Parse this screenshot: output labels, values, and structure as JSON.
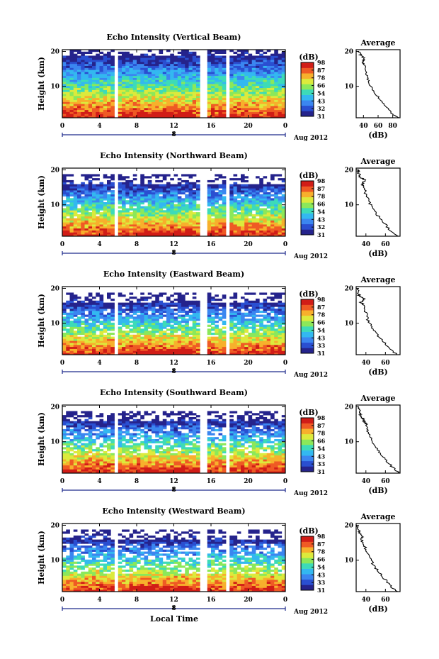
{
  "figure": {
    "xlabel": "Local Time",
    "date_label": "Aug 2012"
  },
  "chart_data": [
    {
      "type": "heatmap",
      "title": "Echo Intensity (Vertical Beam)",
      "ylabel": "Height (km)",
      "xlabel": "Local Time",
      "x_ticks": [
        "0",
        "4",
        "8",
        "12",
        "16",
        "20",
        "0"
      ],
      "x_range": [
        0,
        24
      ],
      "day_tick": "8",
      "y_ticks": [
        "10",
        "20"
      ],
      "y_range": [
        1,
        20.5
      ],
      "colorbar": {
        "title": "(dB)",
        "ticks": [
          "31",
          "32",
          "43",
          "54",
          "66",
          "78",
          "87",
          "98"
        ]
      },
      "data_gaps_hours": [
        [
          5.6,
          5.9
        ],
        [
          15.0,
          15.5
        ],
        [
          17.7,
          18.0
        ]
      ],
      "avg_profile": {
        "title": "Average",
        "xlabel": "(dB)",
        "x_ticks": [
          "40",
          "60",
          "80"
        ],
        "x_range": [
          30,
          90
        ],
        "y_ticks": [
          "10",
          "20"
        ],
        "values": [
          {
            "h": 1,
            "db": 88
          },
          {
            "h": 2,
            "db": 80
          },
          {
            "h": 4,
            "db": 72
          },
          {
            "h": 6,
            "db": 64
          },
          {
            "h": 8,
            "db": 56
          },
          {
            "h": 10,
            "db": 50
          },
          {
            "h": 12,
            "db": 46
          },
          {
            "h": 14,
            "db": 44
          },
          {
            "h": 16,
            "db": 41
          },
          {
            "h": 17,
            "db": 39
          },
          {
            "h": 18,
            "db": 41
          },
          {
            "h": 19,
            "db": 36
          },
          {
            "h": 20,
            "db": 34
          }
        ]
      }
    },
    {
      "type": "heatmap",
      "title": "Echo Intensity (Northward Beam)",
      "ylabel": "Height (km)",
      "xlabel": "Local Time",
      "x_ticks": [
        "0",
        "4",
        "8",
        "12",
        "16",
        "20",
        "0"
      ],
      "x_range": [
        0,
        24
      ],
      "day_tick": "8",
      "y_ticks": [
        "10",
        "20"
      ],
      "y_range": [
        1,
        20.5
      ],
      "colorbar": {
        "title": "(dB)",
        "ticks": [
          "31",
          "32",
          "43",
          "54",
          "66",
          "78",
          "87",
          "98"
        ]
      },
      "data_gaps_hours": [
        [
          5.6,
          5.9
        ],
        [
          15.0,
          15.5
        ],
        [
          17.7,
          18.0
        ]
      ],
      "avg_profile": {
        "title": "Average",
        "xlabel": "(dB)",
        "x_ticks": [
          "40",
          "60"
        ],
        "x_range": [
          30,
          75
        ],
        "y_ticks": [
          "10",
          "20"
        ],
        "values": [
          {
            "h": 1,
            "db": 73
          },
          {
            "h": 3,
            "db": 64
          },
          {
            "h": 5,
            "db": 58
          },
          {
            "h": 7,
            "db": 52
          },
          {
            "h": 9,
            "db": 47
          },
          {
            "h": 11,
            "db": 43
          },
          {
            "h": 13,
            "db": 40
          },
          {
            "h": 15,
            "db": 38
          },
          {
            "h": 16,
            "db": 36
          },
          {
            "h": 17,
            "db": 39
          },
          {
            "h": 18,
            "db": 34
          },
          {
            "h": 19,
            "db": 33
          },
          {
            "h": 20,
            "db": 32
          }
        ]
      }
    },
    {
      "type": "heatmap",
      "title": "Echo Intensity (Eastward Beam)",
      "ylabel": "Height (km)",
      "xlabel": "Local Time",
      "x_ticks": [
        "0",
        "4",
        "8",
        "12",
        "16",
        "20",
        "0"
      ],
      "x_range": [
        0,
        24
      ],
      "day_tick": "8",
      "y_ticks": [
        "10",
        "20"
      ],
      "y_range": [
        1,
        20.5
      ],
      "colorbar": {
        "title": "(dB)",
        "ticks": [
          "31",
          "33",
          "43",
          "54",
          "66",
          "78",
          "87",
          "98"
        ]
      },
      "data_gaps_hours": [
        [
          5.6,
          5.9
        ],
        [
          15.0,
          15.5
        ],
        [
          17.7,
          18.0
        ]
      ],
      "avg_profile": {
        "title": "Average",
        "xlabel": "(dB)",
        "x_ticks": [
          "40",
          "60"
        ],
        "x_range": [
          30,
          75
        ],
        "y_ticks": [
          "10",
          "20"
        ],
        "values": [
          {
            "h": 1,
            "db": 72
          },
          {
            "h": 3,
            "db": 63
          },
          {
            "h": 5,
            "db": 57
          },
          {
            "h": 7,
            "db": 51
          },
          {
            "h": 9,
            "db": 46
          },
          {
            "h": 11,
            "db": 42
          },
          {
            "h": 13,
            "db": 40
          },
          {
            "h": 15,
            "db": 38
          },
          {
            "h": 16,
            "db": 35
          },
          {
            "h": 17,
            "db": 38
          },
          {
            "h": 18,
            "db": 33
          },
          {
            "h": 19,
            "db": 32
          },
          {
            "h": 20,
            "db": 31
          }
        ]
      }
    },
    {
      "type": "heatmap",
      "title": "Echo Intensity (Southward Beam)",
      "ylabel": "Height (km)",
      "xlabel": "Local Time",
      "x_ticks": [
        "0",
        "4",
        "8",
        "12",
        "16",
        "20",
        "0"
      ],
      "x_range": [
        0,
        24
      ],
      "day_tick": "8",
      "y_ticks": [
        "10",
        "20"
      ],
      "y_range": [
        1,
        20.5
      ],
      "colorbar": {
        "title": "(dB)",
        "ticks": [
          "31",
          "33",
          "43",
          "54",
          "66",
          "78",
          "87",
          "98"
        ]
      },
      "data_gaps_hours": [
        [
          5.6,
          5.9
        ],
        [
          15.0,
          15.5
        ],
        [
          17.7,
          18.0
        ]
      ],
      "avg_profile": {
        "title": "Average",
        "xlabel": "(dB)",
        "x_ticks": [
          "40",
          "60"
        ],
        "x_range": [
          30,
          75
        ],
        "y_ticks": [
          "10",
          "20"
        ],
        "values": [
          {
            "h": 1,
            "db": 74
          },
          {
            "h": 3,
            "db": 66
          },
          {
            "h": 5,
            "db": 60
          },
          {
            "h": 7,
            "db": 54
          },
          {
            "h": 9,
            "db": 49
          },
          {
            "h": 11,
            "db": 45
          },
          {
            "h": 13,
            "db": 42
          },
          {
            "h": 15,
            "db": 40
          },
          {
            "h": 16,
            "db": 38
          },
          {
            "h": 17,
            "db": 36
          },
          {
            "h": 18,
            "db": 34
          },
          {
            "h": 19,
            "db": 33
          },
          {
            "h": 20,
            "db": 32
          }
        ]
      }
    },
    {
      "type": "heatmap",
      "title": "Echo Intensity (Westward Beam)",
      "ylabel": "Height (km)",
      "xlabel": "Local Time",
      "x_ticks": [
        "0",
        "4",
        "8",
        "12",
        "16",
        "20",
        "0"
      ],
      "x_range": [
        0,
        24
      ],
      "day_tick": "8",
      "y_ticks": [
        "10",
        "20"
      ],
      "y_range": [
        1,
        20.5
      ],
      "colorbar": {
        "title": "(dB)",
        "ticks": [
          "31",
          "33",
          "43",
          "54",
          "66",
          "78",
          "87",
          "98"
        ]
      },
      "data_gaps_hours": [
        [
          5.6,
          5.9
        ],
        [
          15.0,
          15.5
        ],
        [
          17.7,
          18.0
        ]
      ],
      "avg_profile": {
        "title": "Average",
        "xlabel": "(dB)",
        "x_ticks": [
          "40",
          "60"
        ],
        "x_range": [
          30,
          75
        ],
        "y_ticks": [
          "10",
          "20"
        ],
        "values": [
          {
            "h": 1,
            "db": 72
          },
          {
            "h": 3,
            "db": 64
          },
          {
            "h": 5,
            "db": 58
          },
          {
            "h": 7,
            "db": 52
          },
          {
            "h": 9,
            "db": 47
          },
          {
            "h": 11,
            "db": 43
          },
          {
            "h": 13,
            "db": 40
          },
          {
            "h": 15,
            "db": 37
          },
          {
            "h": 16,
            "db": 35
          },
          {
            "h": 17,
            "db": 37
          },
          {
            "h": 18,
            "db": 33
          },
          {
            "h": 19,
            "db": 32
          },
          {
            "h": 20,
            "db": 31
          }
        ]
      }
    }
  ],
  "colormap": [
    "#25238c",
    "#2a4fd1",
    "#3b86f0",
    "#33b8f0",
    "#3ddbb8",
    "#8be85a",
    "#dcea3c",
    "#f7b02c",
    "#ef5a24",
    "#d11d17"
  ]
}
